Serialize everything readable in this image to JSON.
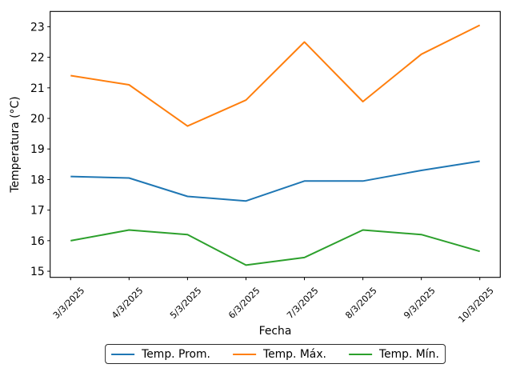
{
  "figure": {
    "background": "#ffffff",
    "axis_color": "#000000",
    "text_color": "#000000"
  },
  "chart_data": {
    "type": "line",
    "title": "",
    "xlabel": "Fecha",
    "ylabel": "Temperatura (°C)",
    "x_tick_labels": [
      "3/3/2025",
      "4/3/2025",
      "5/3/2025",
      "6/3/2025",
      "7/3/2025",
      "8/3/2025",
      "9/3/2025",
      "10/3/2025"
    ],
    "yticks": [
      15,
      16,
      17,
      18,
      19,
      20,
      21,
      22,
      23
    ],
    "ylim": [
      14.8,
      23.5
    ],
    "xlim": [
      -0.35,
      7.35
    ],
    "grid": false,
    "legend_position": "bottom-center-outside",
    "series": [
      {
        "name": "Temp. Prom.",
        "color": "#1f77b4",
        "values": [
          18.1,
          18.05,
          17.45,
          17.3,
          17.95,
          17.95,
          18.3,
          18.6
        ]
      },
      {
        "name": "Temp. Máx.",
        "color": "#ff7f0e",
        "values": [
          21.4,
          21.1,
          19.75,
          20.6,
          22.5,
          20.55,
          22.1,
          23.05
        ]
      },
      {
        "name": "Temp. Mín.",
        "color": "#2ca02c",
        "values": [
          16.0,
          16.35,
          16.2,
          15.2,
          15.45,
          16.35,
          16.2,
          15.65
        ]
      }
    ]
  }
}
